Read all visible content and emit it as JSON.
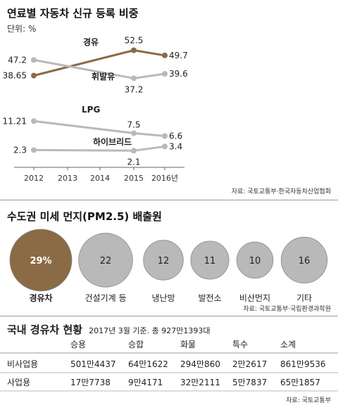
{
  "chart_data": [
    {
      "type": "line",
      "title": "연료별 자동차 신규 등록 비중",
      "unit": "단위: %",
      "x": [
        "2012",
        "2013",
        "2014",
        "2015",
        "2016년"
      ],
      "series": [
        {
          "name": "경유",
          "values": [
            38.65,
            null,
            null,
            52.5,
            49.7
          ],
          "labels": [
            "38.65",
            "",
            "",
            "52.5",
            "49.7"
          ],
          "color": "#8a6b45"
        },
        {
          "name": "휘발유",
          "values": [
            47.2,
            null,
            null,
            37.2,
            39.6
          ],
          "labels": [
            "47.2",
            "",
            "",
            "37.2",
            "39.6"
          ],
          "color": "#b9b9b9"
        },
        {
          "name": "LPG",
          "values": [
            11.21,
            null,
            null,
            7.5,
            6.6
          ],
          "labels": [
            "11.21",
            "",
            "",
            "7.5",
            "6.6"
          ],
          "color": "#b9b9b9"
        },
        {
          "name": "하이브리드",
          "values": [
            2.3,
            null,
            null,
            2.1,
            3.4
          ],
          "labels": [
            "2.3",
            "",
            "",
            "2.1",
            "3.4"
          ],
          "color": "#b9b9b9"
        }
      ],
      "source": "자료: 국토교통부·한국자동차산업협회"
    },
    {
      "type": "bubble",
      "title": "수도권 미세 먼지(PM2.5) 배출원",
      "categories": [
        "경유차",
        "건설기계 등",
        "냉난방",
        "발전소",
        "비산먼지",
        "기타"
      ],
      "values": [
        29,
        22,
        12,
        11,
        10,
        16
      ],
      "value_labels": [
        "29%",
        "22",
        "12",
        "11",
        "10",
        "16"
      ],
      "colors": {
        "highlight": "#8a6b45",
        "normal": "#b9b9b9"
      },
      "source": "자료: 국토교통부·국립환경과학원"
    },
    {
      "type": "table",
      "title": "국내 경유차 현황",
      "subtitle": "2017년 3월 기준. 총 927만1393대",
      "columns": [
        "승용",
        "승합",
        "화물",
        "특수",
        "소계"
      ],
      "rows": [
        {
          "label": "비사업용",
          "cells": [
            "501만4437",
            "64만1622",
            "294만860",
            "2만2617",
            "861만9536"
          ]
        },
        {
          "label": "사업용",
          "cells": [
            "17만7738",
            "9만4171",
            "32만2111",
            "5만7837",
            "65만1857"
          ]
        }
      ],
      "source": "자료: 국토교통부"
    }
  ]
}
